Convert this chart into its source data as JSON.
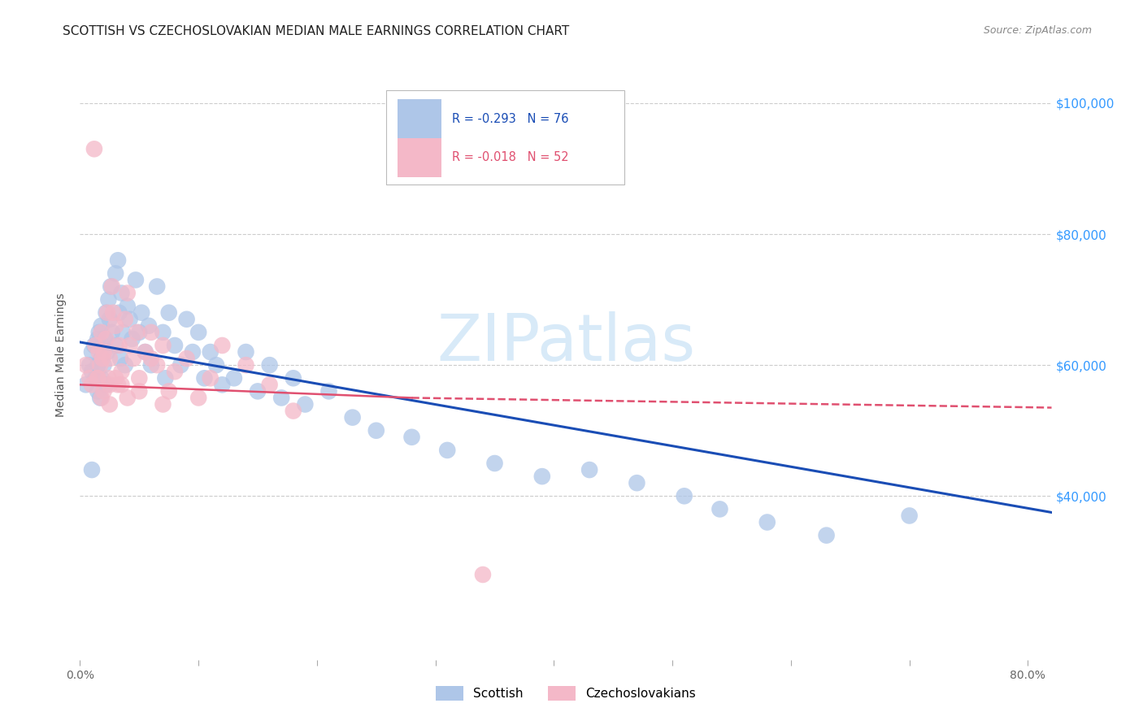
{
  "title": "SCOTTISH VS CZECHOSLOVAKIAN MEDIAN MALE EARNINGS CORRELATION CHART",
  "source": "Source: ZipAtlas.com",
  "ylabel": "Median Male Earnings",
  "y_tick_labels": [
    "$100,000",
    "$80,000",
    "$60,000",
    "$40,000"
  ],
  "y_tick_values": [
    100000,
    80000,
    60000,
    40000
  ],
  "y_lim": [
    15000,
    108000
  ],
  "x_lim": [
    0.0,
    0.82
  ],
  "background_color": "#ffffff",
  "grid_color": "#cccccc",
  "scottish_color": "#aec6e8",
  "czech_color": "#f4b8c8",
  "scottish_line_color": "#1a4db5",
  "czech_line_color": "#e05070",
  "watermark_color": "#d8eaf8",
  "scottish_R": -0.293,
  "scottish_N": 76,
  "czech_R": -0.018,
  "czech_N": 52,
  "scottish_scatter": {
    "x": [
      0.005,
      0.008,
      0.01,
      0.01,
      0.01,
      0.012,
      0.013,
      0.015,
      0.015,
      0.015,
      0.016,
      0.017,
      0.018,
      0.018,
      0.018,
      0.019,
      0.02,
      0.021,
      0.022,
      0.022,
      0.023,
      0.024,
      0.025,
      0.026,
      0.027,
      0.03,
      0.03,
      0.032,
      0.033,
      0.034,
      0.035,
      0.036,
      0.038,
      0.04,
      0.042,
      0.044,
      0.047,
      0.05,
      0.052,
      0.055,
      0.058,
      0.06,
      0.065,
      0.07,
      0.072,
      0.075,
      0.08,
      0.085,
      0.09,
      0.095,
      0.1,
      0.105,
      0.11,
      0.115,
      0.12,
      0.13,
      0.14,
      0.15,
      0.16,
      0.17,
      0.18,
      0.19,
      0.21,
      0.23,
      0.25,
      0.28,
      0.31,
      0.35,
      0.39,
      0.43,
      0.47,
      0.51,
      0.54,
      0.58,
      0.63,
      0.7
    ],
    "y": [
      57000,
      60000,
      44000,
      62000,
      59000,
      63000,
      58000,
      64000,
      60000,
      56000,
      65000,
      55000,
      61000,
      66000,
      58000,
      63000,
      60000,
      64000,
      57000,
      68000,
      62000,
      70000,
      67000,
      72000,
      65000,
      74000,
      63000,
      76000,
      68000,
      61000,
      71000,
      65000,
      60000,
      69000,
      67000,
      64000,
      73000,
      65000,
      68000,
      62000,
      66000,
      60000,
      72000,
      65000,
      58000,
      68000,
      63000,
      60000,
      67000,
      62000,
      65000,
      58000,
      62000,
      60000,
      57000,
      58000,
      62000,
      56000,
      60000,
      55000,
      58000,
      54000,
      56000,
      52000,
      50000,
      49000,
      47000,
      45000,
      43000,
      44000,
      42000,
      40000,
      38000,
      36000,
      34000,
      37000
    ]
  },
  "czech_scatter": {
    "x": [
      0.005,
      0.008,
      0.01,
      0.012,
      0.013,
      0.015,
      0.016,
      0.017,
      0.018,
      0.019,
      0.02,
      0.022,
      0.023,
      0.024,
      0.025,
      0.027,
      0.028,
      0.03,
      0.032,
      0.033,
      0.035,
      0.038,
      0.04,
      0.042,
      0.045,
      0.048,
      0.05,
      0.055,
      0.06,
      0.065,
      0.07,
      0.075,
      0.08,
      0.09,
      0.1,
      0.11,
      0.12,
      0.14,
      0.16,
      0.18,
      0.02,
      0.025,
      0.07,
      0.015,
      0.03,
      0.025,
      0.035,
      0.04,
      0.05,
      0.018,
      0.34,
      0.06
    ],
    "y": [
      60000,
      58000,
      57000,
      93000,
      63000,
      58000,
      62000,
      60000,
      65000,
      61000,
      56000,
      64000,
      68000,
      58000,
      61000,
      72000,
      68000,
      66000,
      57000,
      63000,
      59000,
      67000,
      71000,
      63000,
      61000,
      65000,
      58000,
      62000,
      65000,
      60000,
      63000,
      56000,
      59000,
      61000,
      55000,
      58000,
      63000,
      60000,
      57000,
      53000,
      62000,
      57000,
      54000,
      58000,
      58000,
      54000,
      57000,
      55000,
      56000,
      55000,
      28000,
      61000
    ]
  },
  "scottish_line": {
    "x0": 0.0,
    "y0": 63500,
    "x1": 0.82,
    "y1": 37500
  },
  "czech_line": {
    "x0": 0.0,
    "y0": 57000,
    "x1": 0.28,
    "y1": 55000,
    "x1dash": 0.82,
    "y1dash": 53500
  },
  "title_fontsize": 11,
  "source_fontsize": 9,
  "axis_label_fontsize": 10,
  "tick_fontsize": 10,
  "legend_label1": "R = -0.293   N = 76",
  "legend_label2": "R = -0.018   N = 52",
  "legend_label_color1": "#1a4db5",
  "legend_label_color2": "#e05070"
}
